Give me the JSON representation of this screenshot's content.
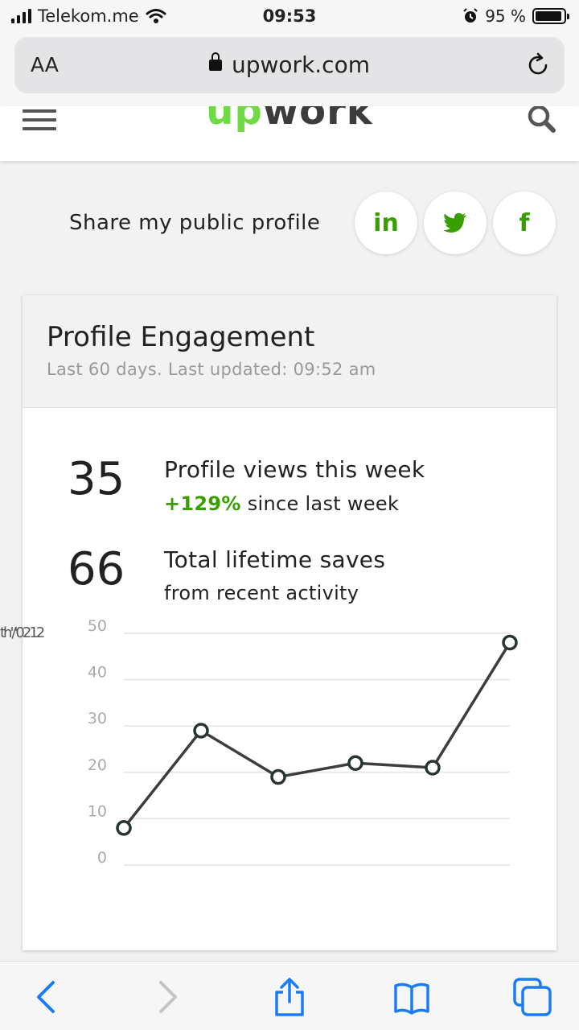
{
  "status_bar": {
    "carrier": "Telekom.me",
    "time": "09:53",
    "battery": "95 %"
  },
  "browser": {
    "text_size_label": "AA",
    "url": "upwork.com"
  },
  "site": {
    "logo_up": "up",
    "logo_work": "work"
  },
  "share": {
    "label": "Share my public profile",
    "buttons": [
      {
        "name": "linkedin",
        "glyph": "in"
      },
      {
        "name": "twitter",
        "glyph": "twitter-bird-icon"
      },
      {
        "name": "facebook",
        "glyph": "f"
      }
    ]
  },
  "engagement": {
    "title": "Profile Engagement",
    "subtitle": "Last 60 days. Last updated: 09:52 am",
    "views": {
      "value": "35",
      "label": "Profile views this week",
      "change": "+129%",
      "change_suffix": " since last week"
    },
    "saves": {
      "value": "66",
      "label": "Total lifetime saves",
      "sub": "from recent activity"
    },
    "stray_text": "th'/'0212"
  },
  "colors": {
    "accent": "#37a000",
    "logo_green": "#6fda44",
    "line": "#3d3d3d"
  },
  "chart_data": {
    "type": "line",
    "x": [
      1,
      2,
      3,
      4,
      5,
      6
    ],
    "values": [
      8,
      29,
      19,
      22,
      21,
      48
    ],
    "yticks": [
      0,
      10,
      20,
      30,
      40,
      50
    ],
    "ylim": [
      0,
      50
    ],
    "grid": true,
    "xlabel": "",
    "ylabel": ""
  }
}
